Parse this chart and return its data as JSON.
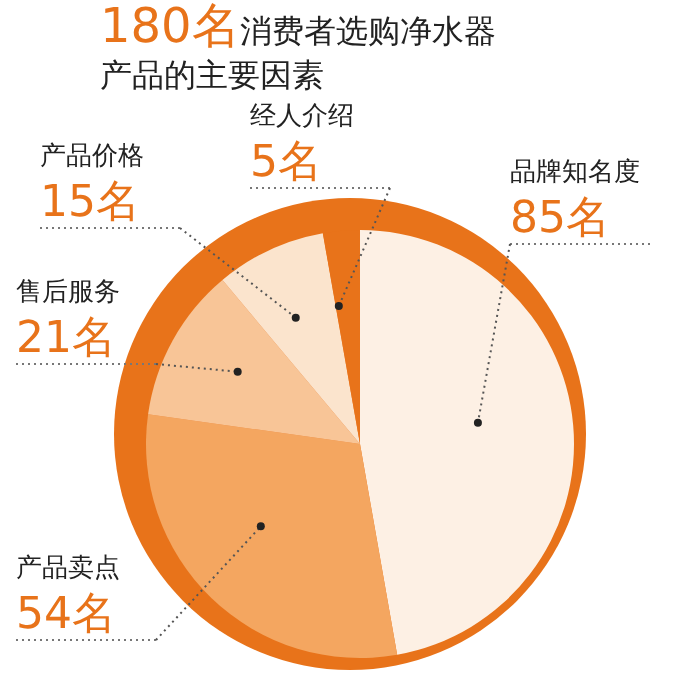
{
  "chart_data": {
    "type": "pie",
    "title": "180名消费者选购净水器产品的主要因素",
    "categories": [
      "品牌知名度",
      "产品卖点",
      "售后服务",
      "产品价格",
      "经人介绍"
    ],
    "values": [
      85,
      54,
      21,
      15,
      5
    ],
    "value_labels": [
      "85名",
      "54名",
      "21名",
      "15名",
      "5名"
    ],
    "colors": [
      "#fdf0e4",
      "#f4a660",
      "#f8c597",
      "#fbe4cd",
      "#e8731a"
    ]
  }
}
